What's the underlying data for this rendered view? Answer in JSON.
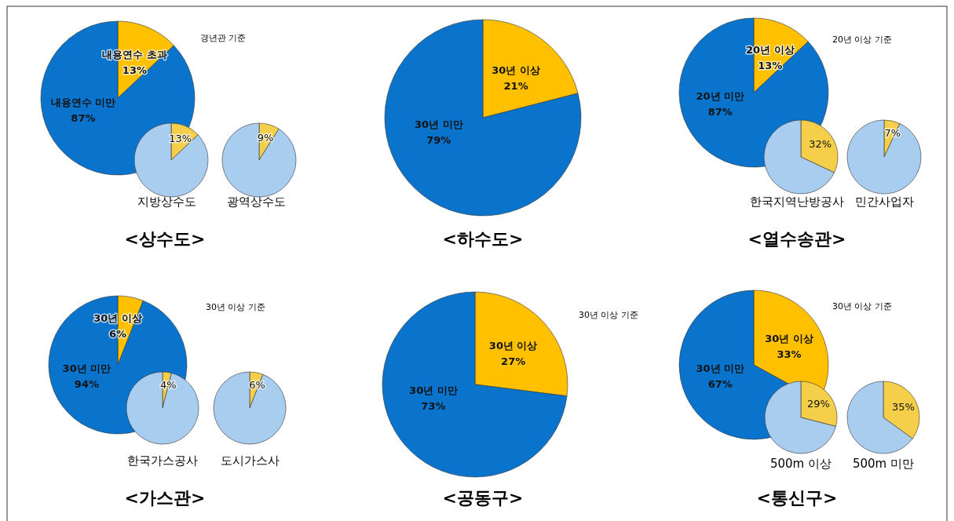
{
  "chart_data": [
    {
      "type": "pie",
      "title": "<상수도>",
      "categories": [
        "내용연수 초과",
        "내용연수 미만"
      ],
      "values": [
        13,
        87
      ],
      "colors": [
        "#ffc000",
        "#0a74cc"
      ],
      "value_labels": [
        "13%",
        "87%"
      ],
      "annotations": [
        "경년관 기준"
      ]
    },
    {
      "type": "pie",
      "title": "지방상수도",
      "categories": [
        null,
        null
      ],
      "values": [
        13,
        87
      ],
      "colors": [
        "#f5cf4a",
        "#a9cdef"
      ],
      "value_labels": [
        "13%",
        null
      ]
    },
    {
      "type": "pie",
      "title": "광역상수도",
      "categories": [
        null,
        null
      ],
      "values": [
        9,
        91
      ],
      "colors": [
        "#f5cf4a",
        "#a9cdef"
      ],
      "value_labels": [
        "9%",
        null
      ]
    },
    {
      "type": "pie",
      "title": "<하수도>",
      "categories": [
        "30년 이상",
        "30년 미만"
      ],
      "values": [
        21,
        79
      ],
      "colors": [
        "#ffc000",
        "#0a74cc"
      ],
      "value_labels": [
        "21%",
        "79%"
      ]
    },
    {
      "type": "pie",
      "title": "<열수송관>",
      "categories": [
        "20년 이상",
        "20년 미만"
      ],
      "values": [
        13,
        87
      ],
      "colors": [
        "#ffc000",
        "#0a74cc"
      ],
      "value_labels": [
        "13%",
        "87%"
      ],
      "annotations": [
        "20년 이상 기준"
      ]
    },
    {
      "type": "pie",
      "title": "한국지역난방공사",
      "categories": [
        null,
        null
      ],
      "values": [
        32,
        68
      ],
      "colors": [
        "#f5cf4a",
        "#a9cdef"
      ],
      "value_labels": [
        "32%",
        null
      ]
    },
    {
      "type": "pie",
      "title": "민간사업자",
      "categories": [
        null,
        null
      ],
      "values": [
        7,
        93
      ],
      "colors": [
        "#f5cf4a",
        "#a9cdef"
      ],
      "value_labels": [
        "7%",
        null
      ]
    },
    {
      "type": "pie",
      "title": "<가스관>",
      "categories": [
        "30년 이상",
        "30년 미만"
      ],
      "values": [
        6,
        94
      ],
      "colors": [
        "#ffc000",
        "#0a74cc"
      ],
      "value_labels": [
        "6%",
        "94%"
      ],
      "annotations": [
        "30년 이상 기준"
      ]
    },
    {
      "type": "pie",
      "title": "한국가스공사",
      "categories": [
        null,
        null
      ],
      "values": [
        4,
        96
      ],
      "colors": [
        "#f5cf4a",
        "#a9cdef"
      ],
      "value_labels": [
        "4%",
        null
      ]
    },
    {
      "type": "pie",
      "title": "도시가스사",
      "categories": [
        null,
        null
      ],
      "values": [
        6,
        94
      ],
      "colors": [
        "#f5cf4a",
        "#a9cdef"
      ],
      "value_labels": [
        "6%",
        null
      ]
    },
    {
      "type": "pie",
      "title": "<공동구>",
      "categories": [
        "30년 이상",
        "30년 미만"
      ],
      "values": [
        27,
        73
      ],
      "colors": [
        "#ffc000",
        "#0a74cc"
      ],
      "value_labels": [
        "27%",
        "73%"
      ],
      "annotations": [
        "30년 이상 기준"
      ]
    },
    {
      "type": "pie",
      "title": "<통신구>",
      "categories": [
        "30년 이상",
        "30년 미만"
      ],
      "values": [
        33,
        67
      ],
      "colors": [
        "#ffc000",
        "#0a74cc"
      ],
      "value_labels": [
        "33%",
        "67%"
      ],
      "annotations": [
        "30년 이상 기준"
      ]
    },
    {
      "type": "pie",
      "title": "500m 이상",
      "categories": [
        null,
        null
      ],
      "values": [
        29,
        71
      ],
      "colors": [
        "#f5cf4a",
        "#a9cdef"
      ],
      "value_labels": [
        "29%",
        null
      ]
    },
    {
      "type": "pie",
      "title": "500m 미만",
      "categories": [
        null,
        null
      ],
      "values": [
        35,
        65
      ],
      "colors": [
        "#f5cf4a",
        "#a9cdef"
      ],
      "value_labels": [
        "35%",
        null
      ]
    }
  ]
}
